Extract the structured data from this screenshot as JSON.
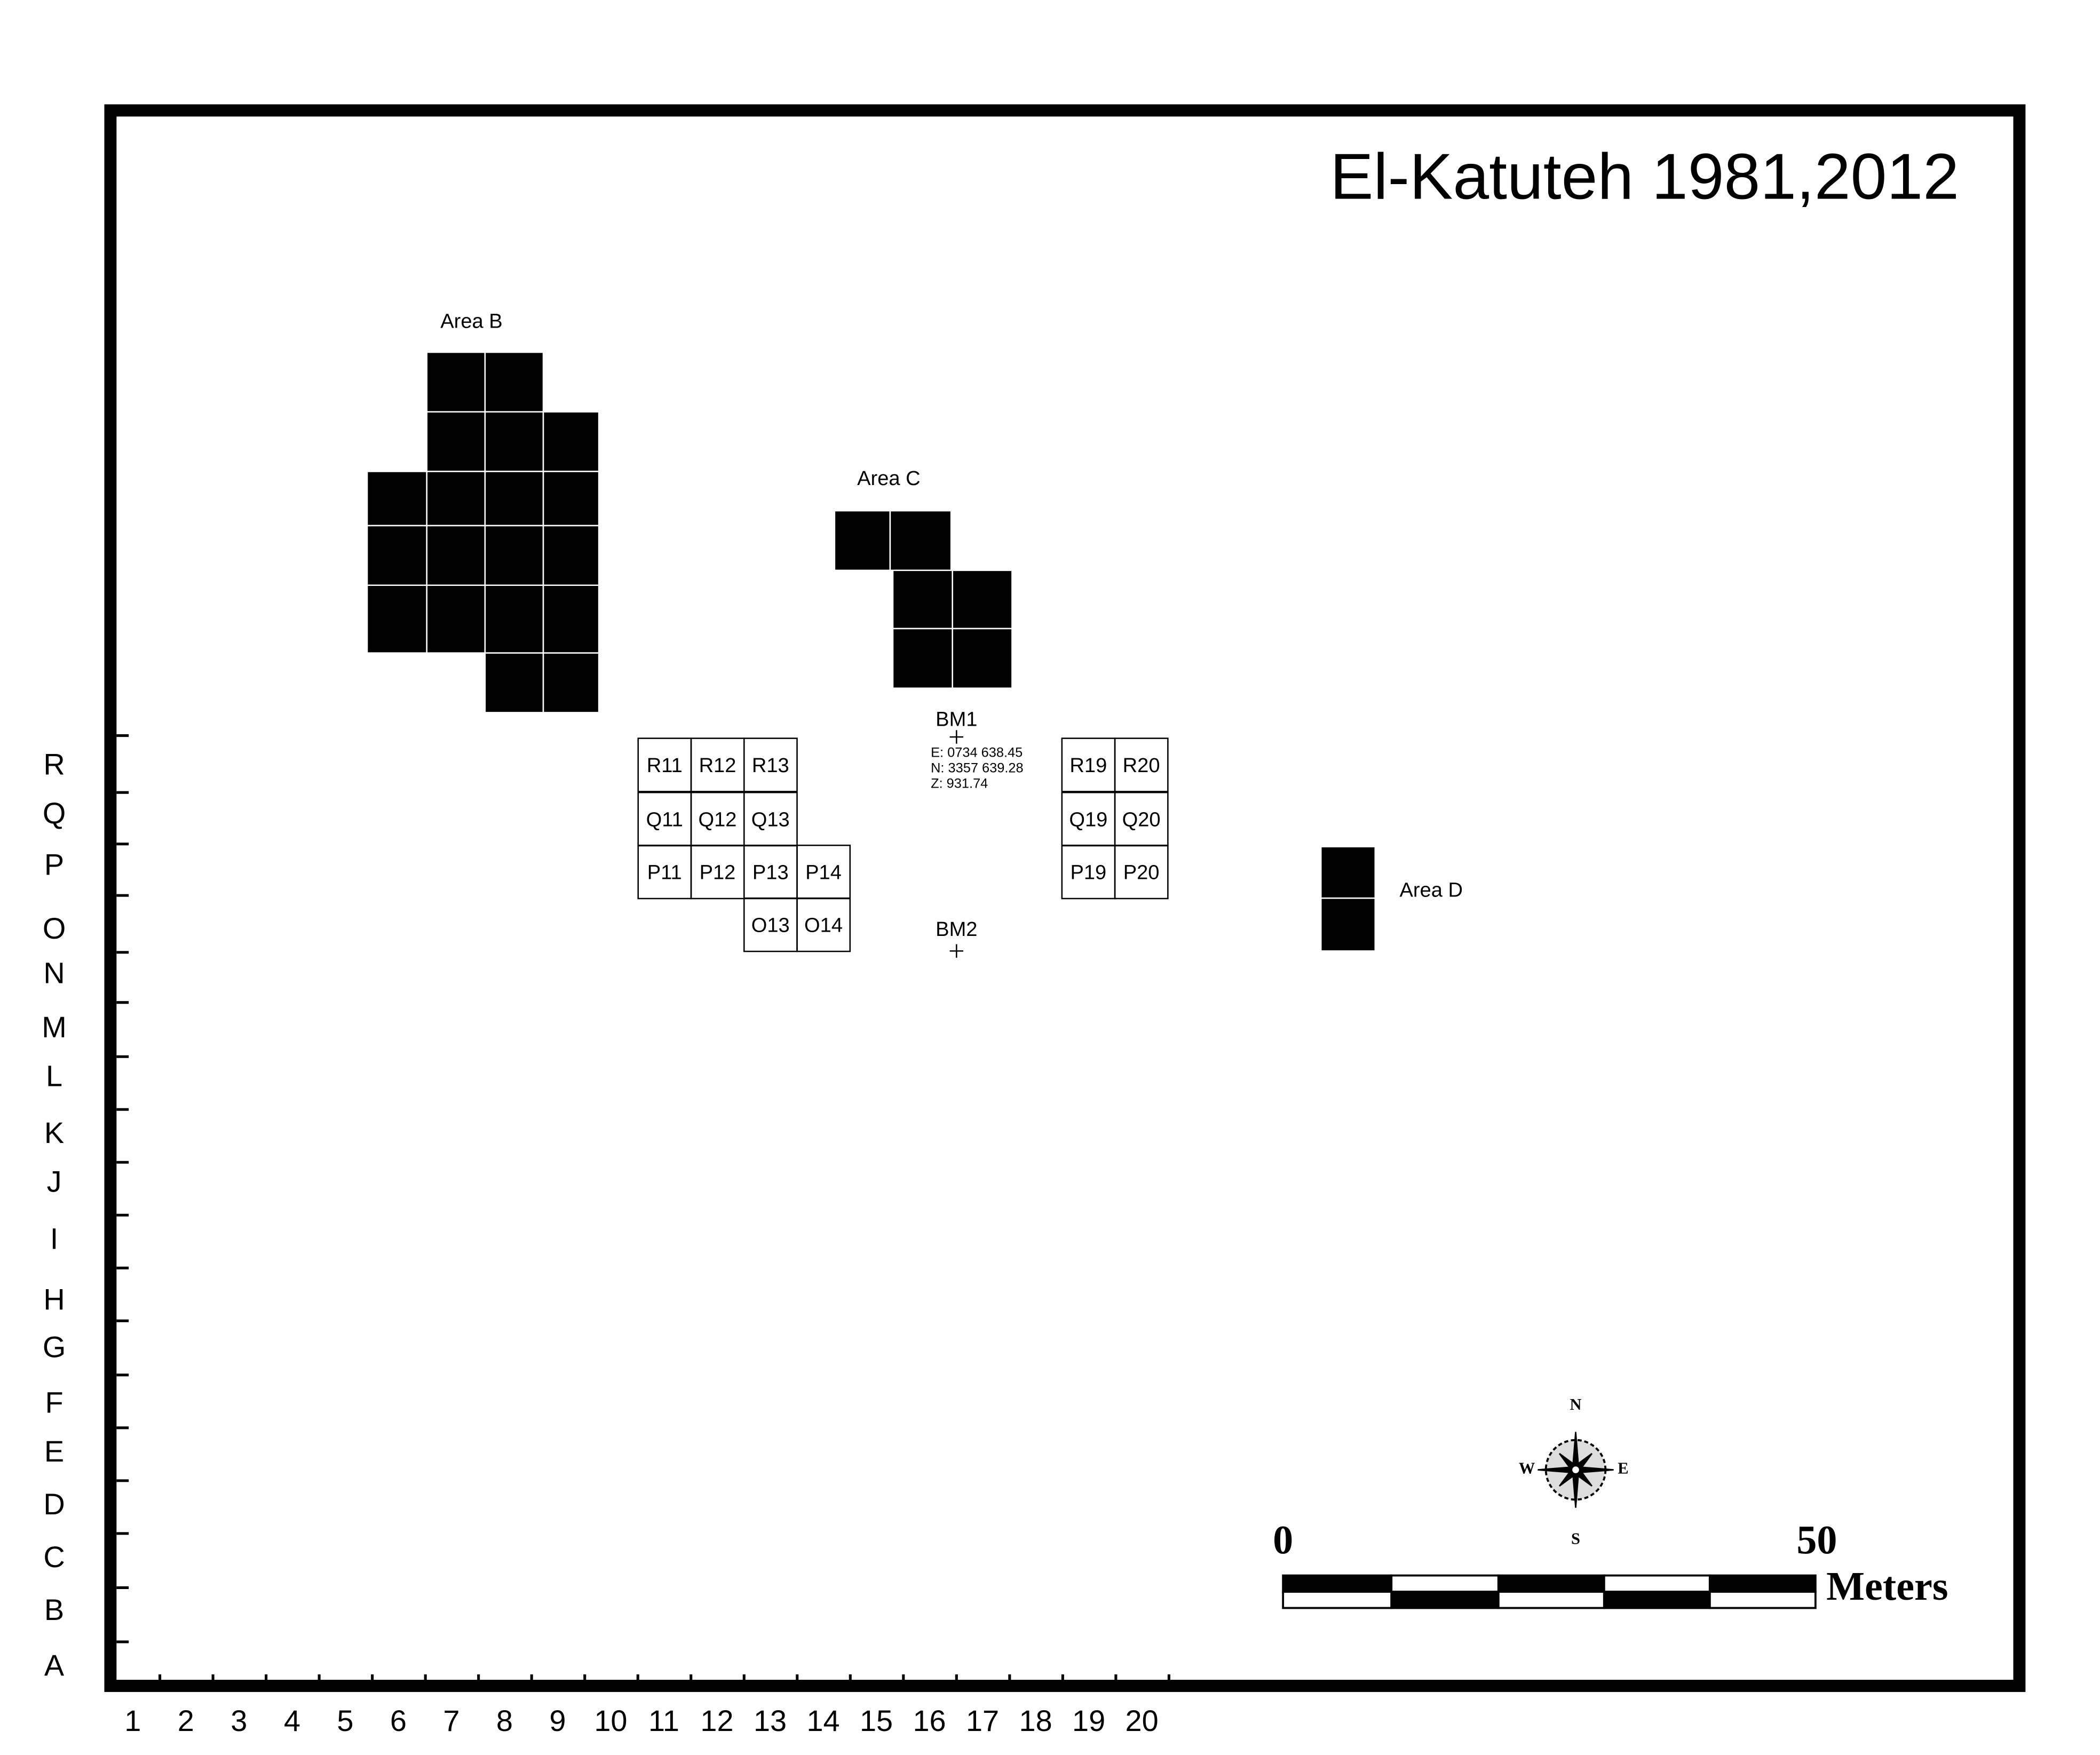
{
  "title": "El-Katuteh 1981,2012",
  "areas": [
    {
      "label": "Area B"
    },
    {
      "label": "Area C"
    },
    {
      "label": "Area D"
    }
  ],
  "squares": [
    "R11",
    "R12",
    "R13",
    "R19",
    "R20",
    "Q11",
    "Q12",
    "Q13",
    "Q19",
    "Q20",
    "P11",
    "P12",
    "P13",
    "P14",
    "P19",
    "P20",
    "O13",
    "O14"
  ],
  "benchmarks": [
    {
      "label": "BM1",
      "coords": [
        "E: 0734 638.45",
        "N: 3357 639.28",
        "Z: 931.74"
      ]
    },
    {
      "label": "BM2"
    }
  ],
  "rows": [
    "R",
    "Q",
    "P",
    "O",
    "N",
    "M",
    "L",
    "K",
    "J",
    "I",
    "H",
    "G",
    "F",
    "E",
    "D",
    "C",
    "B",
    "A"
  ],
  "columns": [
    "1",
    "2",
    "3",
    "4",
    "5",
    "6",
    "7",
    "8",
    "9",
    "10",
    "11",
    "12",
    "13",
    "14",
    "15",
    "16",
    "17",
    "18",
    "19",
    "20"
  ],
  "compass": {
    "n": "N",
    "e": "E",
    "s": "S",
    "w": "W"
  },
  "scale_bar": {
    "start": "0",
    "end": "50",
    "unit": "Meters"
  }
}
